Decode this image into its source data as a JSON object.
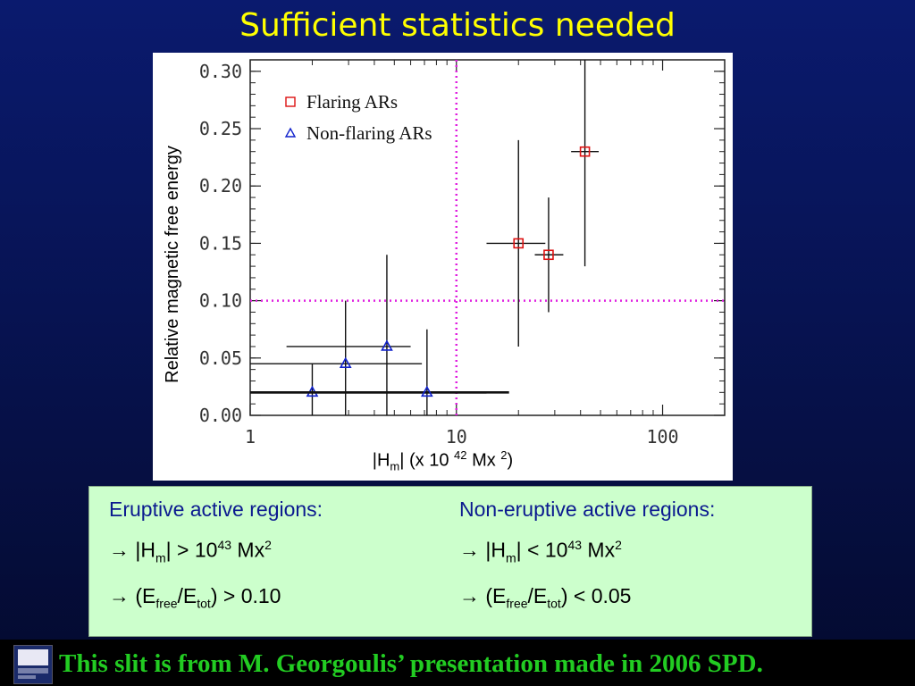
{
  "slide": {
    "title": "Sufficient statistics needed",
    "footer_text": "This slit is from M. Georgoulis’ presentation made in 2006 SPD."
  },
  "chart_data": {
    "type": "scatter",
    "ylabel": "Relative magnetic free energy",
    "xlabel": "|H_m| (x 10^42 Mx^2)",
    "x_scale": "log",
    "xlim": [
      1,
      200
    ],
    "ylim": [
      0.0,
      0.31
    ],
    "x_ticks": [
      1,
      10,
      100
    ],
    "x_tick_labels": [
      "1",
      "10",
      "100"
    ],
    "y_ticks": [
      0.0,
      0.05,
      0.1,
      0.15,
      0.2,
      0.25,
      0.3
    ],
    "y_tick_labels": [
      "0.00",
      "0.05",
      "0.10",
      "0.15",
      "0.20",
      "0.25",
      "0.30"
    ],
    "threshold_lines": {
      "x": 10,
      "y": 0.1,
      "color": "#e020e0",
      "style": "dotted"
    },
    "legend_position": "top-left",
    "series": [
      {
        "name": "Flaring ARs",
        "marker": "square",
        "color": "#dd1111",
        "points": [
          {
            "x": 20,
            "y": 0.15,
            "x_err": [
              14,
              27
            ],
            "y_err": [
              0.06,
              0.24
            ]
          },
          {
            "x": 28,
            "y": 0.14,
            "x_err": [
              24,
              33
            ],
            "y_err": [
              0.09,
              0.19
            ]
          },
          {
            "x": 42,
            "y": 0.23,
            "x_err": [
              36,
              49
            ],
            "y_err": [
              0.13,
              0.31
            ]
          }
        ]
      },
      {
        "name": "Non-flaring ARs",
        "marker": "triangle",
        "color": "#1122cc",
        "points": [
          {
            "x": 2.0,
            "y": 0.02,
            "x_err": [
              0.3,
              14
            ],
            "y_err": [
              0.0,
              0.045
            ]
          },
          {
            "x": 2.9,
            "y": 0.045,
            "x_err": [
              1.0,
              6.8
            ],
            "y_err": [
              0.0,
              0.1
            ]
          },
          {
            "x": 4.6,
            "y": 0.06,
            "x_err": [
              1.5,
              6.0
            ],
            "y_err": [
              0.0,
              0.14
            ]
          },
          {
            "x": 7.2,
            "y": 0.02,
            "x_err": [
              0.3,
              18
            ],
            "y_err": [
              0.0,
              0.075
            ]
          }
        ]
      }
    ]
  },
  "info": {
    "eruptive_header": "Eruptive active regions:",
    "noneruptive_header": "Non-eruptive active regions:",
    "arrow": "→",
    "h_m_base": "|H",
    "h_m_sub": "m",
    "h_m_close": "|",
    "gt": "> 10",
    "lt": "< 10",
    "exp43": "43",
    "mx": "Mx",
    "exp2": "2",
    "e_open": "(E",
    "e_free": "free",
    "e_slash": "/E",
    "e_tot": "tot",
    "e_gt": ") > 0.10",
    "e_lt": ") < 0.05"
  },
  "xlabel_parts": {
    "base": "|H",
    "sub": "m",
    "mid": "| (x 10 ",
    "exp": "42",
    "mx": " Mx ",
    "exp2": "2",
    "close": ")"
  }
}
